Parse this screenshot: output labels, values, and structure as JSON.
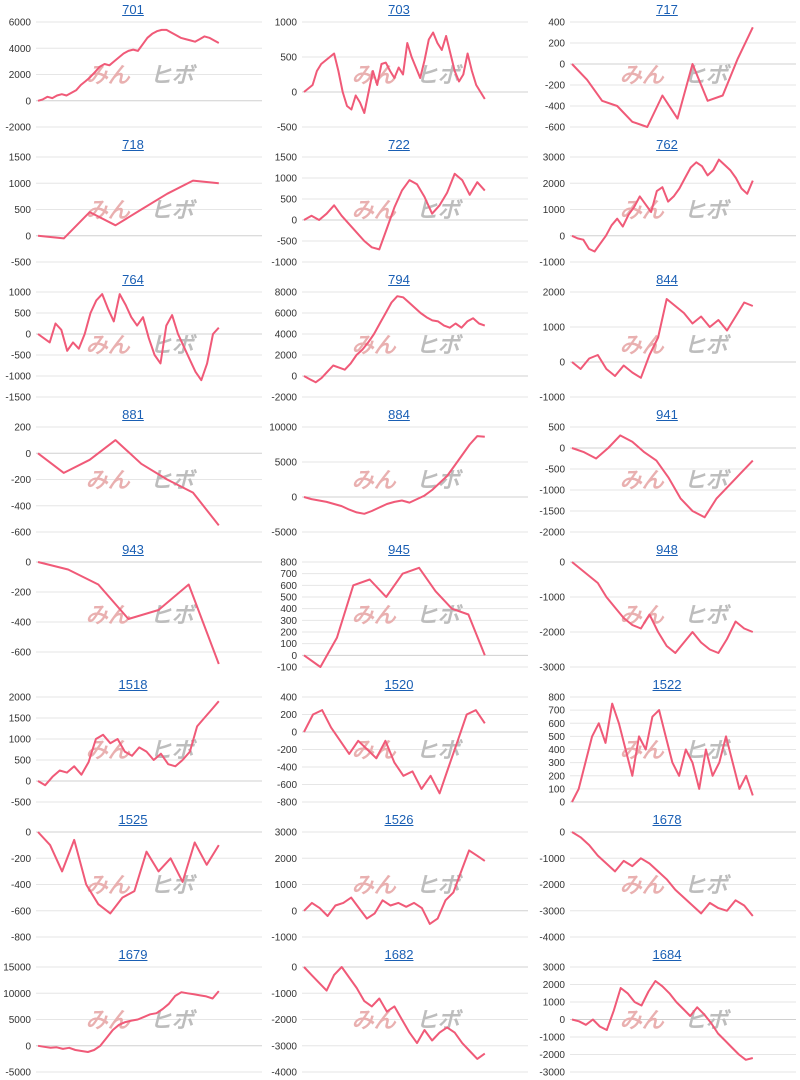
{
  "watermark": {
    "part1": "みん",
    "part2": "ヒボ"
  },
  "colors": {
    "line": "#f05a78",
    "grid": "#e6e6e6",
    "axis": "#d0d0d0",
    "title": "#1a5fb4"
  },
  "chart_data": [
    {
      "type": "line",
      "title": "701",
      "ylim": [
        -2000,
        6000
      ],
      "yticks": [
        6000,
        4000,
        2000,
        0,
        -2000
      ],
      "values": [
        0,
        100,
        300,
        200,
        400,
        500,
        400,
        600,
        800,
        1200,
        1500,
        1800,
        2200,
        2600,
        2800,
        2700,
        3000,
        3300,
        3600,
        3800,
        3900,
        3800,
        4300,
        4800,
        5100,
        5300,
        5400,
        5400,
        5200,
        5000,
        4800,
        4700,
        4600,
        4500,
        4700,
        4900,
        4800,
        4600,
        4400
      ]
    },
    {
      "type": "line",
      "title": "703",
      "ylim": [
        -500,
        1000
      ],
      "yticks": [
        1000,
        500,
        0,
        -500
      ],
      "values": [
        0,
        50,
        100,
        300,
        400,
        450,
        500,
        550,
        300,
        0,
        -200,
        -250,
        -50,
        -150,
        -300,
        0,
        300,
        100,
        400,
        420,
        300,
        200,
        350,
        250,
        700,
        500,
        350,
        200,
        450,
        750,
        850,
        700,
        600,
        800,
        550,
        300,
        150,
        250,
        550,
        300,
        100,
        0,
        -100
      ]
    },
    {
      "type": "line",
      "title": "717",
      "ylim": [
        -600,
        400
      ],
      "yticks": [
        400,
        200,
        0,
        -200,
        -400,
        -600
      ],
      "values": [
        0,
        -150,
        -350,
        -400,
        -550,
        -600,
        -300,
        -520,
        0,
        -350,
        -300,
        50,
        350
      ]
    },
    {
      "type": "line",
      "title": "718",
      "ylim": [
        -500,
        1500
      ],
      "yticks": [
        1500,
        1000,
        500,
        0,
        -500
      ],
      "values": [
        0,
        -50,
        450,
        200,
        500,
        800,
        1050,
        1000
      ]
    },
    {
      "type": "line",
      "title": "722",
      "ylim": [
        -1000,
        1500
      ],
      "yticks": [
        1500,
        1000,
        500,
        0,
        -500,
        -1000
      ],
      "values": [
        0,
        100,
        0,
        150,
        350,
        100,
        -100,
        -300,
        -500,
        -650,
        -700,
        -200,
        300,
        700,
        950,
        850,
        550,
        150,
        350,
        650,
        1100,
        950,
        600,
        900,
        700
      ]
    },
    {
      "type": "line",
      "title": "762",
      "ylim": [
        -1000,
        3000
      ],
      "yticks": [
        3000,
        2000,
        1000,
        0,
        -1000
      ],
      "values": [
        0,
        -100,
        -150,
        -500,
        -600,
        -300,
        0,
        400,
        650,
        350,
        800,
        1100,
        1500,
        1200,
        900,
        1700,
        1850,
        1300,
        1500,
        1800,
        2200,
        2600,
        2800,
        2650,
        2300,
        2500,
        2900,
        2700,
        2500,
        2200,
        1800,
        1600,
        2100
      ]
    },
    {
      "type": "line",
      "title": "764",
      "ylim": [
        -1500,
        1000
      ],
      "yticks": [
        1000,
        500,
        0,
        -500,
        -1000,
        -1500
      ],
      "values": [
        0,
        -100,
        -200,
        250,
        100,
        -400,
        -200,
        -350,
        0,
        500,
        800,
        950,
        600,
        300,
        950,
        700,
        400,
        200,
        400,
        -100,
        -500,
        -700,
        200,
        450,
        0,
        -300,
        -600,
        -900,
        -1100,
        -700,
        0,
        150
      ]
    },
    {
      "type": "line",
      "title": "794",
      "ylim": [
        -2000,
        8000
      ],
      "yticks": [
        8000,
        6000,
        4000,
        2000,
        0,
        -2000
      ],
      "values": [
        0,
        -300,
        -600,
        -200,
        400,
        1000,
        800,
        600,
        1200,
        2000,
        2500,
        3200,
        4000,
        5000,
        6000,
        7000,
        7600,
        7500,
        7000,
        6500,
        6000,
        5600,
        5300,
        5200,
        4800,
        4600,
        5000,
        4600,
        5200,
        5500,
        5000,
        4800
      ]
    },
    {
      "type": "line",
      "title": "844",
      "ylim": [
        -1000,
        2000
      ],
      "yticks": [
        2000,
        1000,
        0,
        -1000
      ],
      "values": [
        0,
        -200,
        100,
        200,
        -200,
        -400,
        -100,
        -300,
        -450,
        200,
        700,
        1800,
        1600,
        1400,
        1100,
        1300,
        1000,
        1200,
        900,
        1300,
        1700,
        1600
      ]
    },
    {
      "type": "line",
      "title": "881",
      "ylim": [
        -600,
        200
      ],
      "yticks": [
        200,
        0,
        -200,
        -400,
        -600
      ],
      "values": [
        0,
        -150,
        -50,
        100,
        -80,
        -200,
        -300,
        -550
      ]
    },
    {
      "type": "line",
      "title": "884",
      "ylim": [
        -5000,
        10000
      ],
      "yticks": [
        10000,
        5000,
        0,
        -5000
      ],
      "values": [
        0,
        -300,
        -500,
        -700,
        -1000,
        -1300,
        -1800,
        -2200,
        -2400,
        -2000,
        -1500,
        -1000,
        -700,
        -500,
        -800,
        -300,
        200,
        1000,
        2000,
        3000,
        4500,
        6000,
        7500,
        8700,
        8600
      ]
    },
    {
      "type": "line",
      "title": "941",
      "ylim": [
        -2000,
        500
      ],
      "yticks": [
        500,
        0,
        -500,
        -1000,
        -1500,
        -2000
      ],
      "values": [
        0,
        -100,
        -250,
        0,
        300,
        150,
        -100,
        -300,
        -700,
        -1200,
        -1500,
        -1650,
        -1200,
        -900,
        -600,
        -300
      ]
    },
    {
      "type": "line",
      "title": "943",
      "ylim": [
        -700,
        0
      ],
      "yticks": [
        0,
        -200,
        -400,
        -600
      ],
      "values": [
        0,
        -50,
        -150,
        -380,
        -320,
        -150,
        -680
      ]
    },
    {
      "type": "line",
      "title": "945",
      "ylim": [
        -100,
        800
      ],
      "yticks": [
        800,
        700,
        600,
        500,
        400,
        300,
        200,
        100,
        0,
        -100
      ],
      "values": [
        0,
        -100,
        150,
        600,
        650,
        500,
        700,
        750,
        550,
        400,
        350,
        0
      ]
    },
    {
      "type": "line",
      "title": "948",
      "ylim": [
        -3000,
        0
      ],
      "yticks": [
        0,
        -1000,
        -2000,
        -3000
      ],
      "values": [
        0,
        -200,
        -400,
        -600,
        -1000,
        -1300,
        -1600,
        -1800,
        -1900,
        -1500,
        -2000,
        -2400,
        -2600,
        -2300,
        -2000,
        -2300,
        -2500,
        -2600,
        -2200,
        -1700,
        -1900,
        -2000
      ]
    },
    {
      "type": "line",
      "title": "1518",
      "ylim": [
        -500,
        2000
      ],
      "yticks": [
        2000,
        1500,
        1000,
        500,
        0,
        -500
      ],
      "values": [
        0,
        -100,
        100,
        250,
        200,
        350,
        150,
        450,
        1000,
        1100,
        900,
        1000,
        700,
        600,
        800,
        700,
        500,
        650,
        400,
        350,
        500,
        700,
        1300,
        1500,
        1700,
        1900
      ]
    },
    {
      "type": "line",
      "title": "1520",
      "ylim": [
        -800,
        400
      ],
      "yticks": [
        400,
        200,
        0,
        -200,
        -400,
        -600,
        -800
      ],
      "values": [
        0,
        200,
        250,
        50,
        -100,
        -250,
        -100,
        -200,
        -300,
        -100,
        -350,
        -500,
        -450,
        -650,
        -500,
        -700,
        -400,
        -100,
        200,
        250,
        100
      ]
    },
    {
      "type": "line",
      "title": "1522",
      "ylim": [
        0,
        800
      ],
      "yticks": [
        800,
        700,
        600,
        500,
        400,
        300,
        200,
        100,
        0
      ],
      "values": [
        0,
        100,
        300,
        500,
        600,
        450,
        750,
        600,
        400,
        200,
        500,
        400,
        650,
        700,
        500,
        300,
        200,
        400,
        300,
        100,
        400,
        200,
        300,
        500,
        300,
        100,
        200,
        50
      ]
    },
    {
      "type": "line",
      "title": "1525",
      "ylim": [
        -800,
        0
      ],
      "yticks": [
        0,
        -200,
        -400,
        -600,
        -800
      ],
      "values": [
        0,
        -100,
        -300,
        -60,
        -400,
        -550,
        -620,
        -500,
        -450,
        -150,
        -300,
        -200,
        -380,
        -80,
        -250,
        -100
      ]
    },
    {
      "type": "line",
      "title": "1526",
      "ylim": [
        -1000,
        3000
      ],
      "yticks": [
        3000,
        2000,
        1000,
        0,
        -1000
      ],
      "values": [
        0,
        300,
        100,
        -200,
        200,
        300,
        500,
        100,
        -300,
        -100,
        400,
        200,
        300,
        150,
        300,
        100,
        -500,
        -300,
        400,
        700,
        1500,
        2300,
        2100,
        1900
      ]
    },
    {
      "type": "line",
      "title": "1678",
      "ylim": [
        -4000,
        0
      ],
      "yticks": [
        0,
        -1000,
        -2000,
        -3000,
        -4000
      ],
      "values": [
        0,
        -200,
        -500,
        -900,
        -1200,
        -1500,
        -1100,
        -1300,
        -1000,
        -1200,
        -1500,
        -1800,
        -2200,
        -2500,
        -2800,
        -3100,
        -2700,
        -2900,
        -3000,
        -2600,
        -2800,
        -3200
      ]
    },
    {
      "type": "line",
      "title": "1679",
      "ylim": [
        -5000,
        15000
      ],
      "yticks": [
        15000,
        10000,
        5000,
        0,
        -5000
      ],
      "values": [
        0,
        -200,
        -400,
        -300,
        -600,
        -400,
        -800,
        -1000,
        -1200,
        -800,
        0,
        1500,
        3000,
        4000,
        4500,
        4800,
        5000,
        5500,
        6000,
        6200,
        7000,
        8000,
        9500,
        10200,
        10000,
        9800,
        9600,
        9400,
        9000,
        10400
      ]
    },
    {
      "type": "line",
      "title": "1682",
      "ylim": [
        -4000,
        0
      ],
      "yticks": [
        0,
        -1000,
        -2000,
        -3000,
        -4000
      ],
      "values": [
        0,
        -300,
        -600,
        -900,
        -300,
        0,
        -400,
        -800,
        -1300,
        -1500,
        -1200,
        -1700,
        -1500,
        -2000,
        -2500,
        -2900,
        -2400,
        -2800,
        -2500,
        -2300,
        -2500,
        -2900,
        -3200,
        -3500,
        -3300
      ]
    },
    {
      "type": "line",
      "title": "1684",
      "ylim": [
        -3000,
        3000
      ],
      "yticks": [
        3000,
        2000,
        1000,
        0,
        -1000,
        -2000,
        -3000
      ],
      "values": [
        0,
        -100,
        -300,
        0,
        -400,
        -600,
        500,
        1800,
        1500,
        1000,
        800,
        1600,
        2200,
        1900,
        1500,
        1000,
        600,
        200,
        700,
        300,
        -200,
        -800,
        -1200,
        -1600,
        -2000,
        -2300,
        -2200
      ]
    }
  ]
}
